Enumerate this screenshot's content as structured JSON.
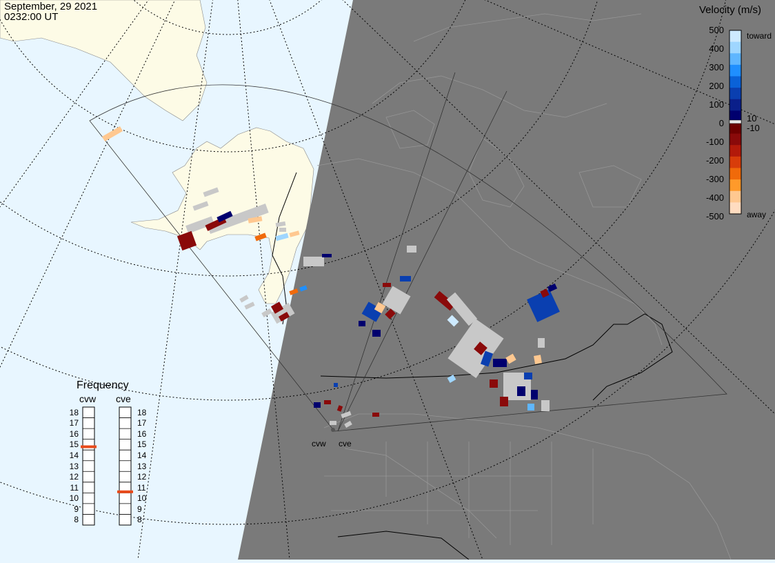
{
  "header": {
    "date": "September, 29 2021",
    "time": "0232:00 UT"
  },
  "colorbar": {
    "title": "Velocity (m/s)",
    "ticks": [
      "500",
      "400",
      "300",
      "200",
      "100",
      "10",
      "0",
      "-10",
      "-100",
      "-200",
      "-300",
      "-400",
      "-500"
    ],
    "label_toward": "toward",
    "label_away": "away",
    "colors": [
      "#cdeaff",
      "#9fd6ff",
      "#5fb6ff",
      "#1f8fff",
      "#0a62d8",
      "#0a3fb0",
      "#0a1f8a",
      "#00006e",
      "#6e0000",
      "#8a0a0a",
      "#b31a0a",
      "#d83d0a",
      "#f06a0a",
      "#ff9a2a",
      "#ffc890",
      "#ffdcc0"
    ]
  },
  "frequency": {
    "title": "Frequency",
    "radars": [
      {
        "name": "cvw",
        "value_mhz": 14.8
      },
      {
        "name": "cve",
        "value_mhz": 10.6
      }
    ],
    "scale": [
      "18",
      "17",
      "16",
      "15",
      "14",
      "13",
      "12",
      "11",
      "10",
      "9",
      "8"
    ],
    "indicator_color": "#e84a1a"
  },
  "sites": [
    "cvw",
    "cve"
  ],
  "map": {
    "colors": {
      "ocean_day": "#e8f6ff",
      "land_day": "#fdfbe6",
      "night": "#7a7a7a",
      "grid_no_data": "#c8c8c8"
    }
  }
}
